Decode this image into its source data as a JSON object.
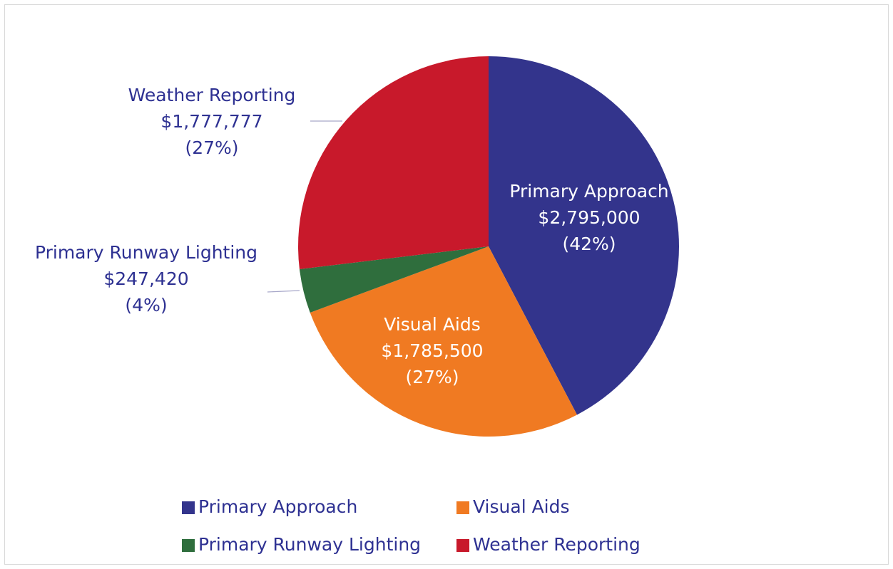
{
  "chart_data": {
    "type": "pie",
    "categories": [
      "Primary Approach",
      "Visual Aids",
      "Primary Runway Lighting",
      "Weather Reporting"
    ],
    "values": [
      2795000,
      1785500,
      247420,
      1777777
    ],
    "value_labels": [
      "$2,795,000",
      "$1,785,500",
      "$247,420",
      "$1,777,777"
    ],
    "percents": [
      42,
      27,
      4,
      27
    ],
    "percent_labels": [
      "(42%)",
      "(27%)",
      "(4%)",
      "(27%)"
    ],
    "colors": [
      "#33348c",
      "#f07a22",
      "#2f6e3d",
      "#c8192b"
    ],
    "legend": "bottom"
  }
}
